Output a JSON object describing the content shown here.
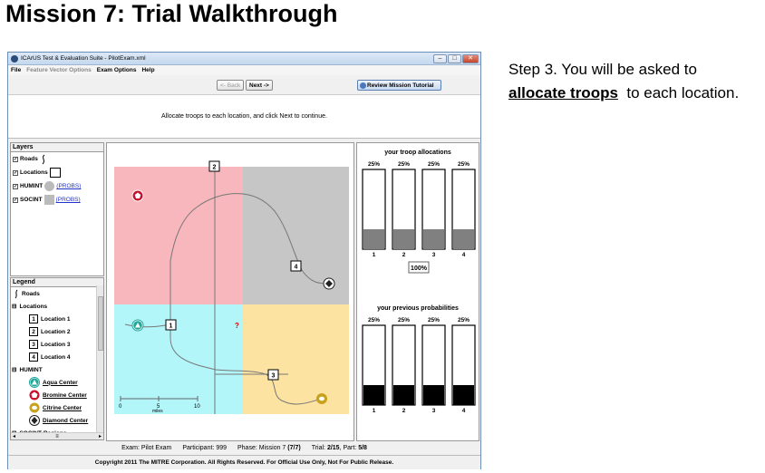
{
  "slide": {
    "title": "Mission 7: Trial Walkthrough",
    "step_prefix": "Step 3. You will be asked to",
    "step_emphasis": "allocate troops",
    "step_suffix": "to each location."
  },
  "window": {
    "title": "ICArUS Test & Evaluation Suite - PilotExam.xml",
    "menu": [
      {
        "label": "File",
        "enabled": true
      },
      {
        "label": "Feature Vector Options",
        "enabled": false
      },
      {
        "label": "Exam Options",
        "enabled": true
      },
      {
        "label": "Help",
        "enabled": true
      }
    ]
  },
  "toolbar": {
    "back_label": "<- Back",
    "next_label": "Next ->",
    "review_label": "Review Mission Tutorial"
  },
  "instructions": "Allocate troops to each location, and click Next to continue.",
  "layers": {
    "title": "Layers",
    "items": [
      {
        "label": "Roads",
        "checked": true
      },
      {
        "label": "Locations",
        "checked": true
      },
      {
        "label": "HUMINT",
        "checked": true,
        "link": "(PROBS)"
      },
      {
        "label": "SOCINT",
        "checked": true,
        "link": "(PROBS)"
      }
    ]
  },
  "legend": {
    "title": "Legend",
    "roads": "Roads",
    "locations_group": "Locations",
    "locations": [
      "Location 1",
      "Location 2",
      "Location 3",
      "Location 4"
    ],
    "location_numbers": [
      "1",
      "2",
      "3",
      "4"
    ],
    "humint_group": "HUMINT",
    "humint": [
      {
        "label": "Aqua Center",
        "color": "#1fa79a"
      },
      {
        "label": "Bromine Center",
        "color": "#c8102e"
      },
      {
        "label": "Citrine Center",
        "color": "#c8a21c"
      },
      {
        "label": "Diamond Center",
        "color": "#222222"
      }
    ],
    "socint_group": "SOCINT Regions"
  },
  "map": {
    "regions": {
      "topleft": "#f7b7bc",
      "topright": "#c6c6c6",
      "bottomleft": "#b3f6fa",
      "bottomright": "#fde3a1"
    },
    "location_labels": [
      "1",
      "2",
      "3",
      "4"
    ],
    "unknown_marker": "?",
    "scale": {
      "ticks": [
        "0",
        "5",
        "10"
      ],
      "unit": "miles"
    }
  },
  "allocations": {
    "title": "your troop allocations",
    "labels": [
      "25%",
      "25%",
      "25%",
      "25%"
    ],
    "values": [
      0.25,
      0.25,
      0.25,
      0.25
    ],
    "columns": [
      "1",
      "2",
      "3",
      "4"
    ],
    "total": "100%"
  },
  "probabilities": {
    "title": "your previous probabilities",
    "labels": [
      "25%",
      "25%",
      "25%",
      "25%"
    ],
    "values": [
      0.25,
      0.25,
      0.25,
      0.25
    ],
    "columns": [
      "1",
      "2",
      "3",
      "4"
    ]
  },
  "status": {
    "exam_label": "Exam:",
    "exam": "Pilot Exam",
    "participant_label": "Participant:",
    "participant": "999",
    "phase_label": "Phase:",
    "phase": "Mission 7",
    "phase_progress": "(7/7)",
    "trial_label": "Trial:",
    "trial": "2/15",
    "part_label": ", Part:",
    "part": "5/8"
  },
  "copyright": "Copyright 2011 The MITRE Corporation. All Rights Reserved. For Official Use Only, Not For Public Release."
}
